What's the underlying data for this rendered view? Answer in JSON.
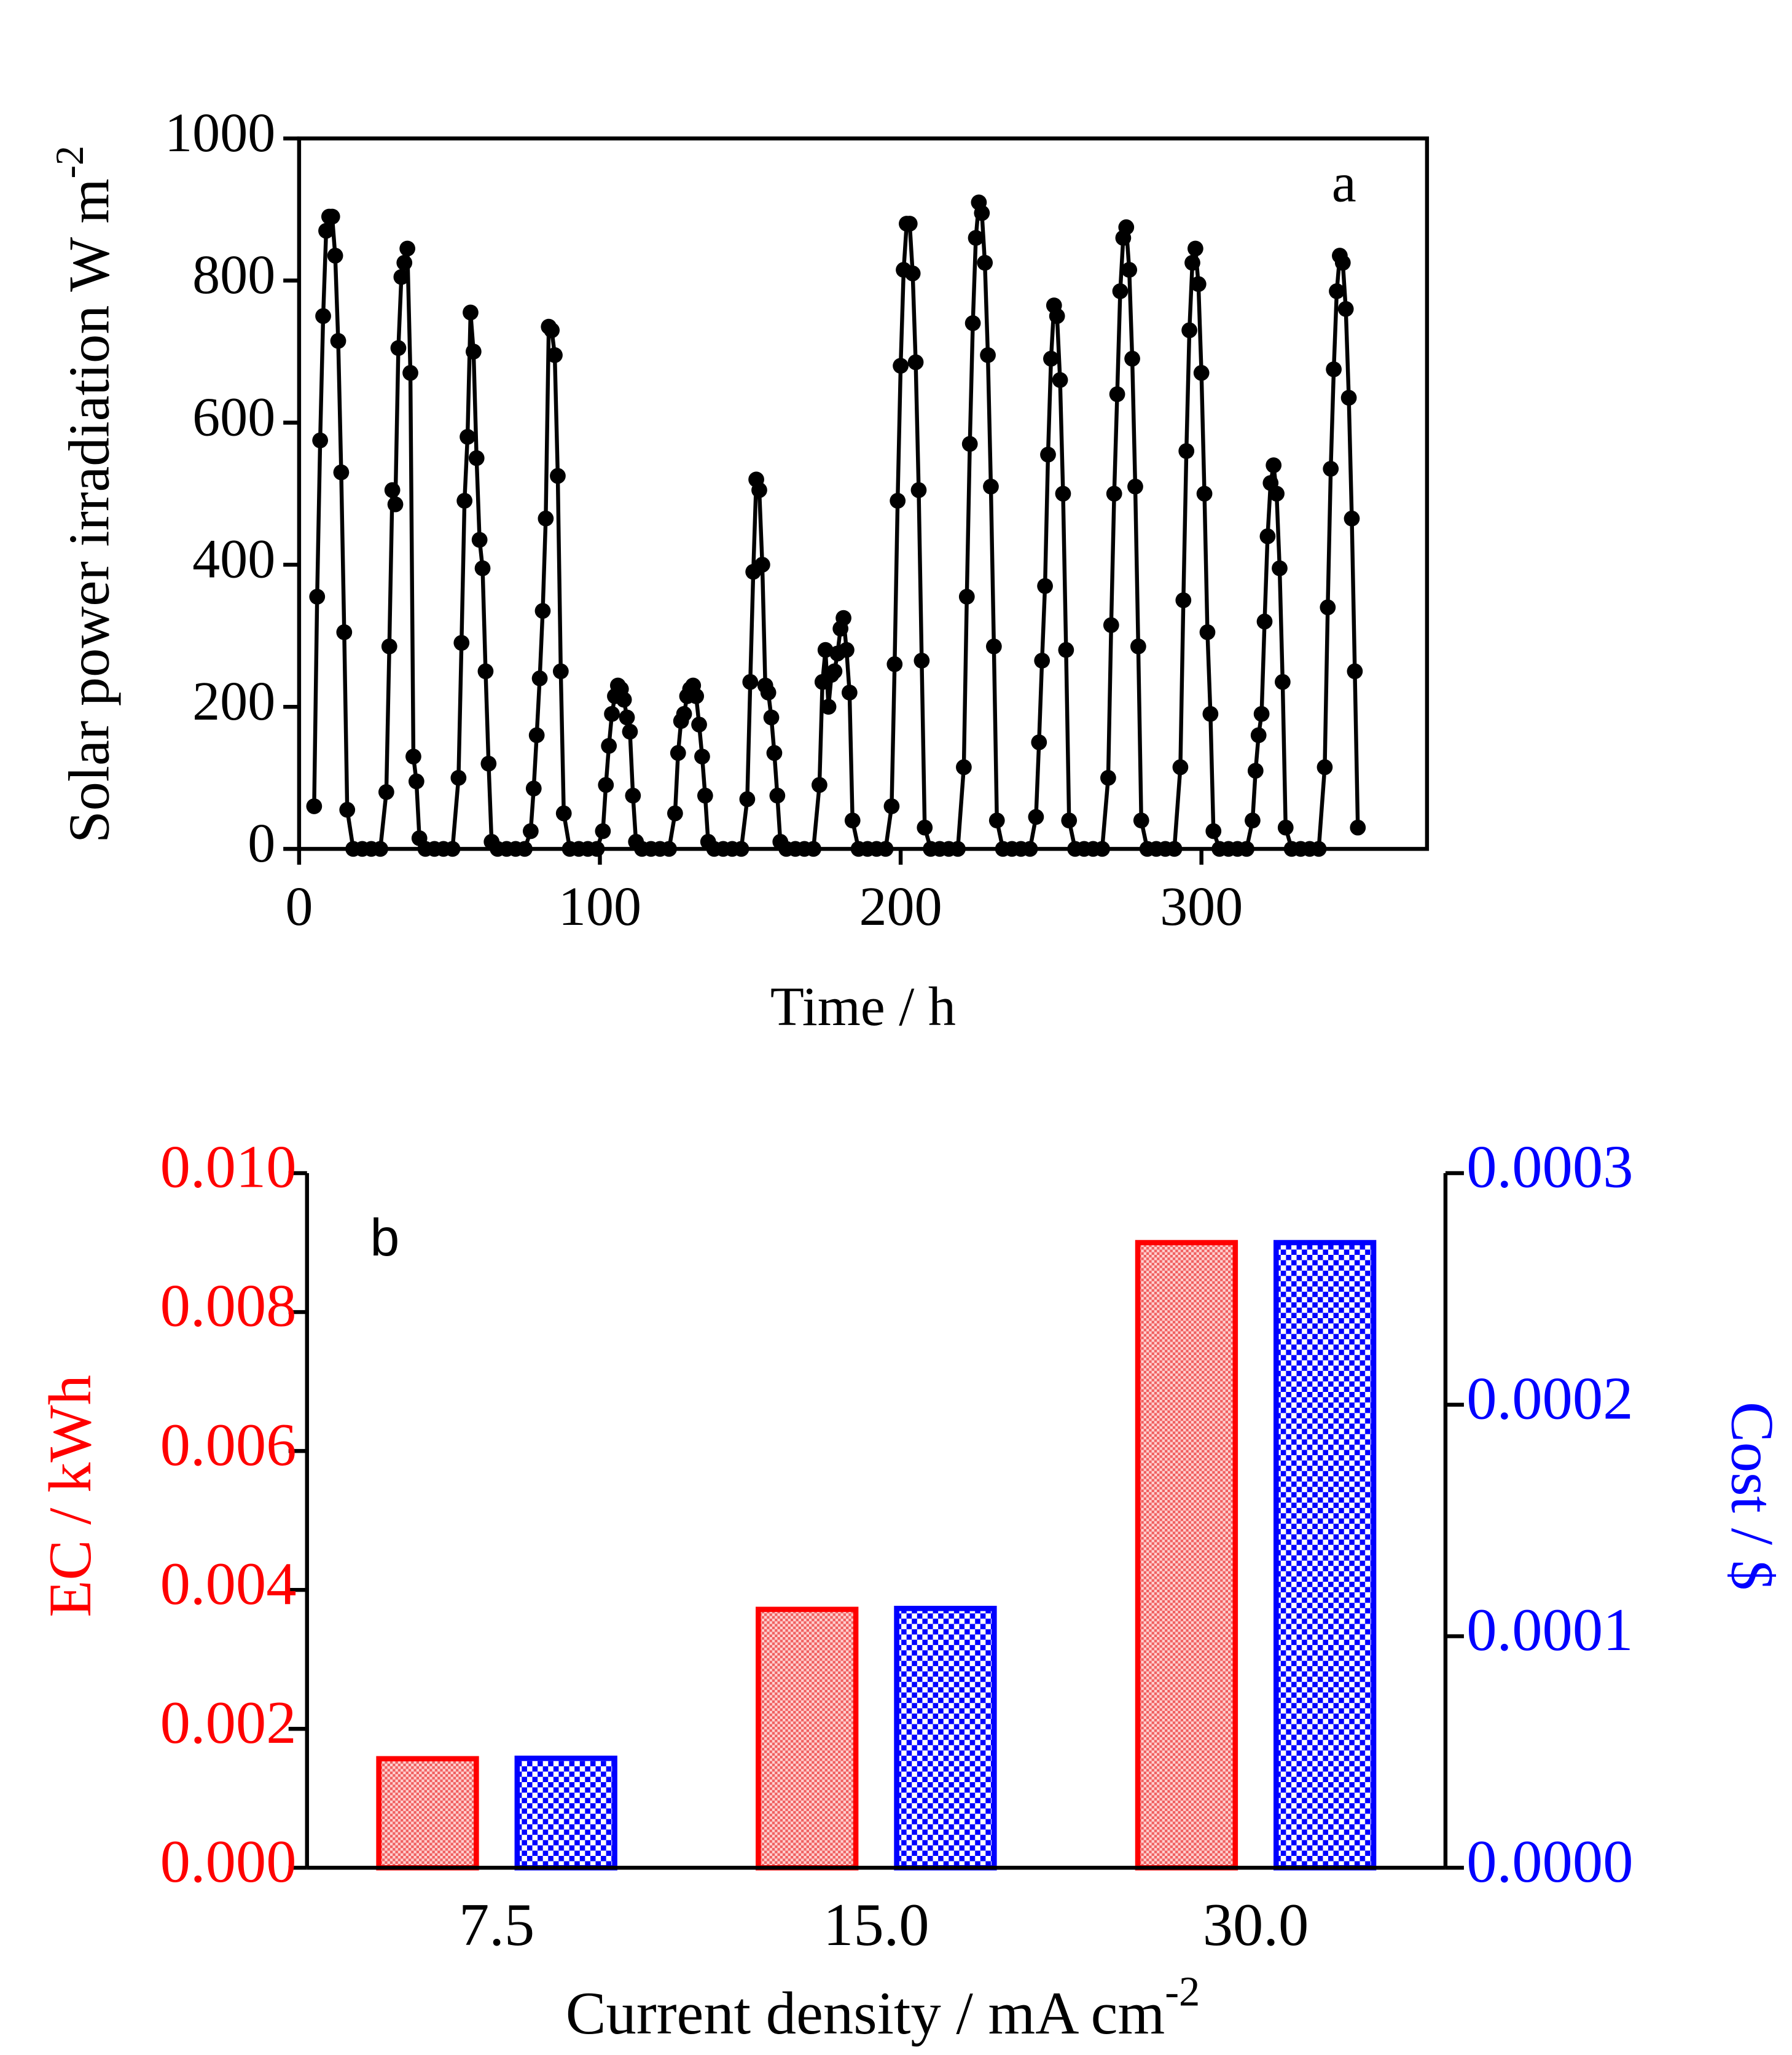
{
  "chart_data": [
    {
      "type": "line",
      "label": "a",
      "x_label": "Time / h",
      "y_label": "Solar power irradiation W m",
      "y_label_superscript": "-2",
      "x": [
        5,
        6,
        7,
        8,
        9,
        10,
        11,
        12,
        13,
        14,
        15,
        16,
        18,
        21,
        24,
        27,
        29,
        30,
        31,
        32,
        33,
        34,
        35,
        36,
        37,
        38,
        39,
        40,
        42,
        45,
        48,
        51,
        53,
        54,
        55,
        56,
        57,
        58,
        59,
        60,
        61,
        62,
        63,
        64,
        66,
        69,
        72,
        75,
        77,
        78,
        79,
        80,
        81,
        82,
        83,
        84,
        85,
        86,
        87,
        88,
        90,
        93,
        96,
        99,
        101,
        102,
        103,
        104,
        105,
        106,
        107,
        108,
        109,
        110,
        111,
        112,
        114,
        117,
        120,
        123,
        125,
        126,
        127,
        128,
        129,
        130,
        131,
        132,
        133,
        134,
        135,
        136,
        138,
        141,
        144,
        147,
        149,
        150,
        151,
        152,
        153,
        154,
        155,
        156,
        157,
        158,
        159,
        160,
        162,
        165,
        168,
        171,
        173,
        174,
        175,
        176,
        177,
        178,
        179,
        180,
        181,
        182,
        183,
        184,
        186,
        189,
        192,
        195,
        197,
        198,
        199,
        200,
        201,
        202,
        203,
        204,
        205,
        206,
        207,
        208,
        210,
        213,
        216,
        219,
        221,
        222,
        223,
        224,
        225,
        226,
        227,
        228,
        229,
        230,
        231,
        232,
        234,
        237,
        240,
        243,
        245,
        246,
        247,
        248,
        249,
        250,
        251,
        252,
        253,
        254,
        255,
        256,
        258,
        261,
        264,
        267,
        269,
        270,
        271,
        272,
        273,
        274,
        275,
        276,
        277,
        278,
        279,
        280,
        282,
        285,
        288,
        291,
        293,
        294,
        295,
        296,
        297,
        298,
        299,
        300,
        301,
        302,
        303,
        304,
        306,
        309,
        312,
        315,
        317,
        318,
        319,
        320,
        321,
        322,
        323,
        324,
        325,
        326,
        327,
        328,
        330,
        333,
        336,
        339,
        341,
        342,
        343,
        344,
        345,
        346,
        347,
        348,
        349,
        350,
        351,
        352
      ],
      "series": [
        {
          "color": "#000000",
          "values": [
            60,
            355,
            575,
            750,
            870,
            890,
            890,
            835,
            715,
            530,
            305,
            55,
            0,
            0,
            0,
            0,
            80,
            285,
            505,
            485,
            705,
            805,
            825,
            845,
            670,
            130,
            95,
            15,
            0,
            0,
            0,
            0,
            100,
            290,
            490,
            580,
            755,
            700,
            550,
            435,
            395,
            250,
            120,
            10,
            0,
            0,
            0,
            0,
            25,
            85,
            160,
            240,
            335,
            465,
            735,
            730,
            695,
            525,
            250,
            50,
            0,
            0,
            0,
            0,
            25,
            90,
            145,
            190,
            215,
            230,
            225,
            210,
            185,
            165,
            75,
            10,
            0,
            0,
            0,
            0,
            50,
            135,
            180,
            190,
            215,
            225,
            230,
            215,
            175,
            130,
            75,
            10,
            0,
            0,
            0,
            0,
            70,
            235,
            390,
            520,
            505,
            400,
            230,
            220,
            185,
            135,
            75,
            10,
            0,
            0,
            0,
            0,
            90,
            235,
            280,
            200,
            245,
            250,
            275,
            310,
            325,
            280,
            220,
            40,
            0,
            0,
            0,
            0,
            60,
            260,
            490,
            680,
            815,
            880,
            880,
            810,
            685,
            505,
            265,
            30,
            0,
            0,
            0,
            0,
            115,
            355,
            570,
            740,
            860,
            910,
            895,
            825,
            695,
            510,
            285,
            40,
            0,
            0,
            0,
            0,
            45,
            150,
            265,
            370,
            555,
            690,
            765,
            750,
            660,
            500,
            280,
            40,
            0,
            0,
            0,
            0,
            100,
            315,
            500,
            640,
            785,
            860,
            875,
            815,
            690,
            510,
            285,
            40,
            0,
            0,
            0,
            0,
            115,
            350,
            560,
            730,
            825,
            845,
            795,
            670,
            500,
            305,
            190,
            25,
            0,
            0,
            0,
            0,
            40,
            110,
            160,
            190,
            320,
            440,
            515,
            540,
            500,
            395,
            235,
            30,
            0,
            0,
            0,
            0,
            115,
            340,
            535,
            675,
            785,
            835,
            825,
            760,
            635,
            465,
            250,
            30
          ]
        }
      ],
      "xlim": [
        0,
        375
      ],
      "ylim": [
        0,
        1000
      ],
      "xticks": [
        0,
        100,
        200,
        300
      ],
      "yticks": [
        0,
        200,
        400,
        600,
        800,
        1000
      ]
    },
    {
      "type": "bar",
      "label": "b",
      "x_label": "Current density / mA cm",
      "x_label_superscript": "-2",
      "y_label": "EC / kWh",
      "y2_label": "Cost / $",
      "y_color": "#ff0000",
      "y2_color": "#0000ff",
      "categories": [
        "7.5",
        "15.0",
        "30.0"
      ],
      "series": [
        {
          "color": "#ff0000",
          "values": [
            0.00157,
            0.00372,
            0.009
          ]
        },
        {
          "color": "#0000ff",
          "axis": "y2",
          "values": [
            4.73e-05,
            0.000112,
            0.00027
          ]
        }
      ],
      "ylim": [
        0,
        0.01
      ],
      "yticks": [
        {
          "value": 0,
          "label": "0.000"
        },
        {
          "value": 0.002,
          "label": "0.002"
        },
        {
          "value": 0.004,
          "label": "0.004"
        },
        {
          "value": 0.006,
          "label": "0.006"
        },
        {
          "value": 0.008,
          "label": "0.008"
        },
        {
          "value": 0.01,
          "label": "0.010"
        }
      ],
      "y2lim": [
        0,
        0.0003
      ],
      "y2ticks": [
        {
          "value": 0,
          "label": "0.0000"
        },
        {
          "value": 0.0001,
          "label": "0.0001"
        },
        {
          "value": 0.0002,
          "label": "0.0002"
        },
        {
          "value": 0.0003,
          "label": "0.0003"
        }
      ]
    }
  ]
}
